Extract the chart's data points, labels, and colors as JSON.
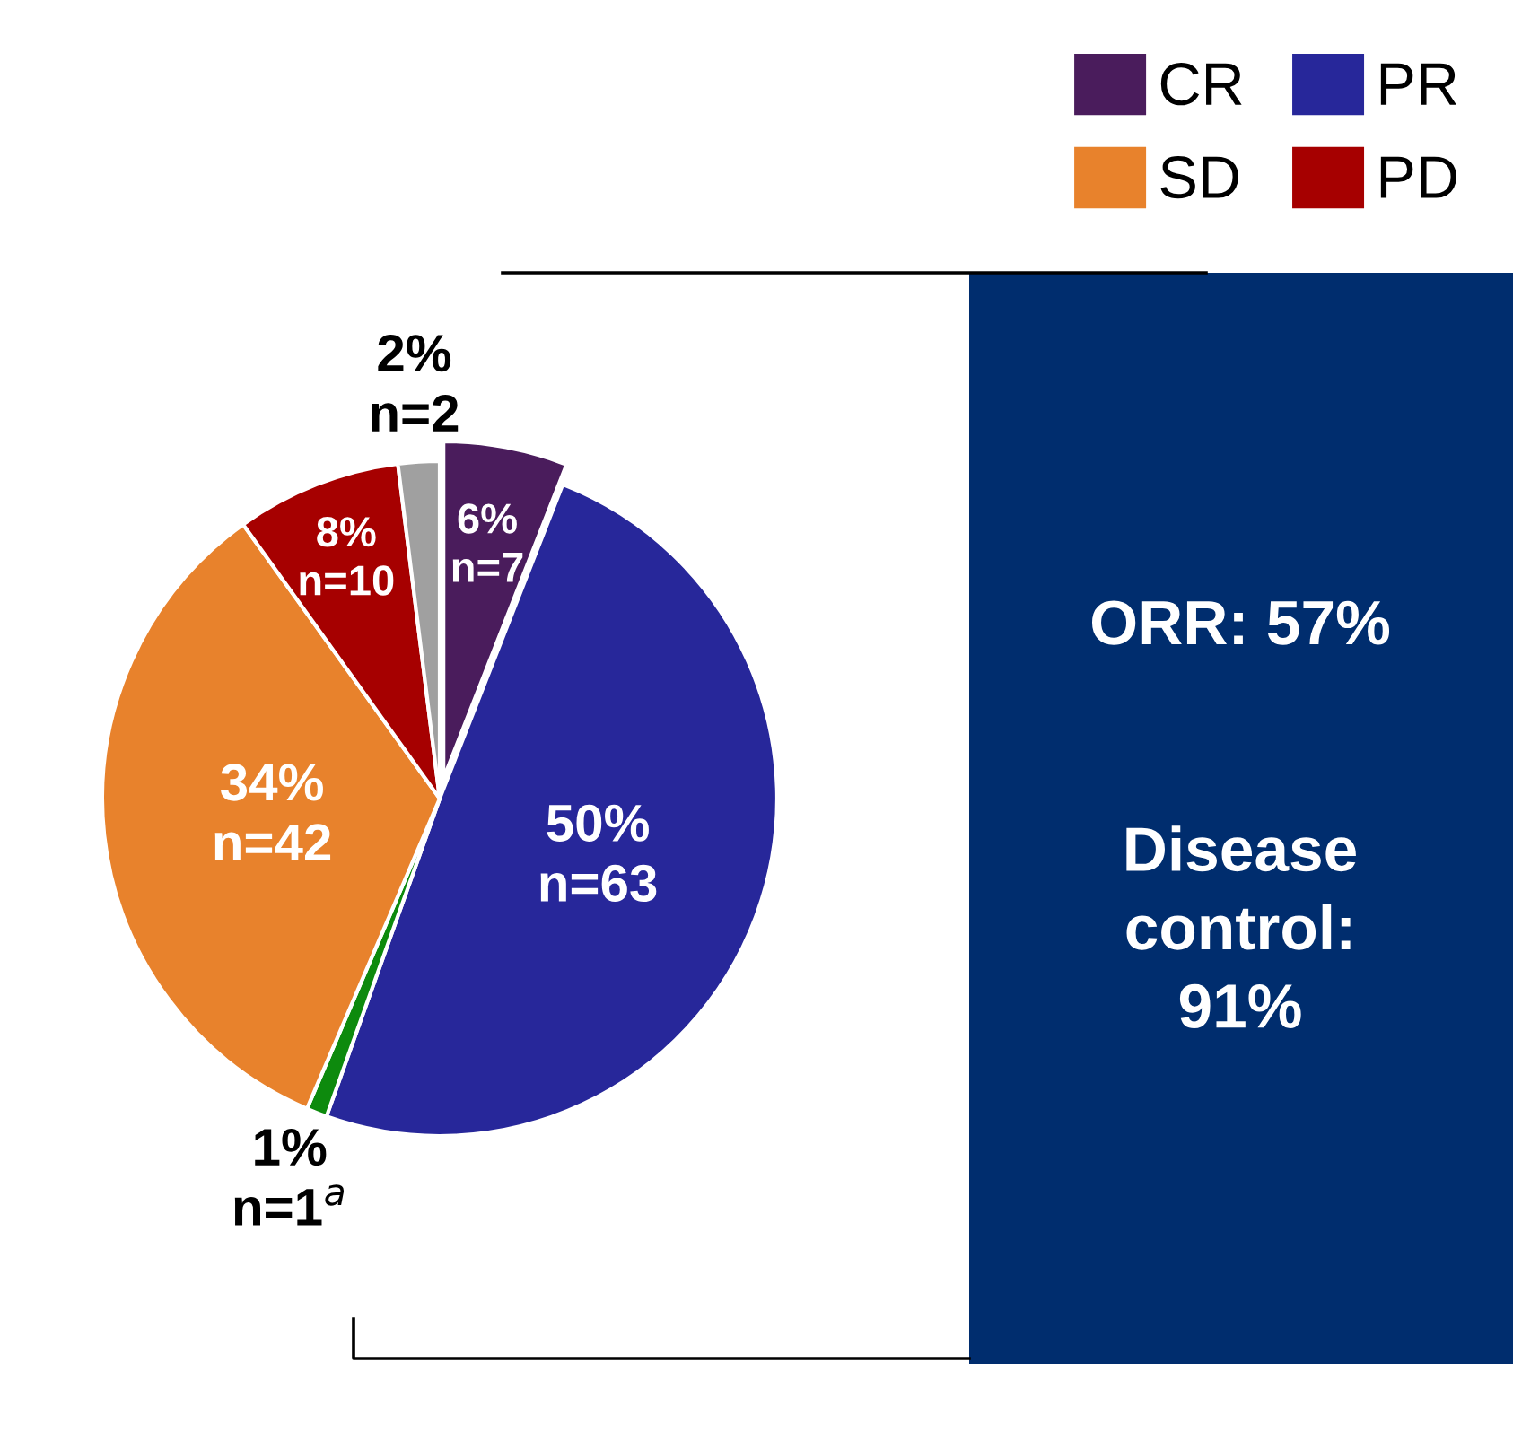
{
  "chart_data": {
    "type": "pie",
    "categories": [
      "CR",
      "PR",
      null,
      "SD",
      "PD",
      null
    ],
    "values": [
      6,
      50,
      1,
      34,
      8,
      2
    ],
    "colors": [
      "#4a1c5c",
      "#27279a",
      "#0d8a0d",
      "#e8822c",
      "#a60000",
      "#a0a0a0"
    ],
    "value_labels": [
      "6%\nn=7",
      "50%\nn=63",
      "1%\nn=1$^{a}$",
      "34%\nn=42",
      "8%\nn=10",
      "2%\nn=2"
    ],
    "annotations": [
      "ORR: 57%",
      "Disease\ncontrol:\n91%"
    ],
    "legend": "top right"
  }
}
